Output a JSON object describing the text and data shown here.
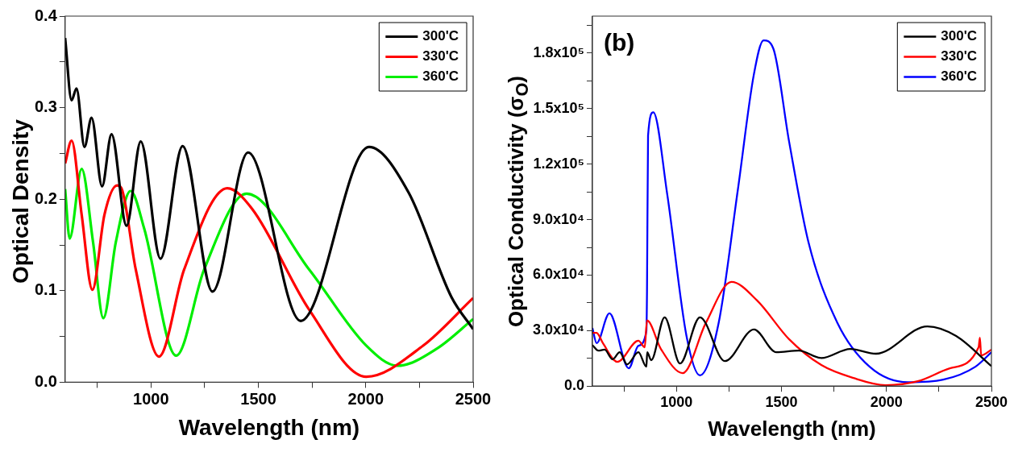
{
  "chart_data": [
    {
      "type": "line",
      "xlabel": "Wavelength (nm)",
      "ylabel": "Optical Density",
      "xlim": [
        600,
        2500
      ],
      "ylim": [
        0,
        0.4
      ],
      "xticks": [
        {
          "value": 750,
          "label": null
        },
        1000,
        {
          "value": 1250,
          "label": null
        },
        1500,
        {
          "value": 1750,
          "label": null
        },
        2000,
        {
          "value": 2250,
          "label": null
        },
        2500
      ],
      "yticks": [
        {
          "value": 0,
          "label": "0.0"
        },
        {
          "value": 0.05,
          "label": null
        },
        0.1,
        {
          "value": 0.15,
          "label": null
        },
        0.2,
        {
          "value": 0.25,
          "label": null
        },
        0.3,
        {
          "value": 0.35,
          "label": null
        },
        0.4
      ],
      "legend": "top right",
      "grid": false,
      "marker": "none",
      "line_style": "solid",
      "series": [
        {
          "name": "300'C",
          "color": "#000000",
          "x": [
            600,
            630,
            653,
            690,
            723,
            772,
            816,
            886,
            952,
            1044,
            1147,
            1286,
            1452,
            1697,
            2015,
            2200,
            2399,
            2500
          ],
          "values": [
            0.376,
            0.308,
            0.321,
            0.257,
            0.289,
            0.214,
            0.271,
            0.171,
            0.263,
            0.135,
            0.258,
            0.099,
            0.251,
            0.067,
            0.257,
            0.207,
            0.093,
            0.058
          ]
        },
        {
          "name": "330'C",
          "color": "#ff0000",
          "x": [
            600,
            630,
            677,
            727,
            783,
            842,
            862,
            929,
            1037,
            1154,
            1355,
            1472,
            1737,
            2002,
            2267,
            2500
          ],
          "values": [
            0.239,
            0.264,
            0.183,
            0.101,
            0.183,
            0.215,
            0.212,
            0.123,
            0.028,
            0.123,
            0.212,
            0.189,
            0.079,
            0.006,
            0.04,
            0.092
          ]
        },
        {
          "name": "360'C",
          "color": "#00ee00",
          "x": [
            600,
            621,
            677,
            730,
            778,
            836,
            905,
            968,
            1117,
            1247,
            1445,
            1737,
            2002,
            2148,
            2333,
            2500
          ],
          "values": [
            0.211,
            0.157,
            0.233,
            0.153,
            0.07,
            0.153,
            0.209,
            0.168,
            0.029,
            0.123,
            0.206,
            0.123,
            0.04,
            0.018,
            0.037,
            0.069
          ]
        }
      ]
    },
    {
      "type": "line",
      "xlabel": "Wavelength (nm)",
      "ylabel": "Optical Conductivity (σ$_{O}$)",
      "xlim": [
        600,
        2500
      ],
      "ylim": [
        0,
        200000
      ],
      "xticks": [
        {
          "value": 750,
          "label": null
        },
        1000,
        {
          "value": 1250,
          "label": null
        },
        1500,
        {
          "value": 1750,
          "label": null
        },
        2000,
        {
          "value": 2250,
          "label": null
        },
        2500
      ],
      "yticks": [
        {
          "value": 0,
          "label": "0.0"
        },
        {
          "value": 15000,
          "label": null
        },
        {
          "value": 30000,
          "label": "3.0x10⁴"
        },
        {
          "value": 45000,
          "label": null
        },
        {
          "value": 60000,
          "label": "6.0x10⁴"
        },
        {
          "value": 75000,
          "label": null
        },
        {
          "value": 90000,
          "label": "9.0x10⁴"
        },
        {
          "value": 105000,
          "label": null
        },
        {
          "value": 120000,
          "label": "1.2x10⁵"
        },
        {
          "value": 135000,
          "label": null
        },
        {
          "value": 150000,
          "label": "1.5x10⁵"
        },
        {
          "value": 165000,
          "label": null
        },
        {
          "value": 180000,
          "label": "1.8x10⁵"
        },
        {
          "value": 195000,
          "label": null
        }
      ],
      "annotations": [
        "(b)"
      ],
      "legend": "top right",
      "grid": false,
      "marker": "none",
      "line_style": "solid",
      "series": [
        {
          "name": "300'C",
          "color": "#000000",
          "x": [
            600,
            628,
            658,
            696,
            730,
            765,
            819,
            857,
            861,
            880,
            944,
            1017,
            1112,
            1231,
            1369,
            1476,
            1583,
            1690,
            1828,
            1950,
            2195,
            2332,
            2500
          ],
          "values": [
            22200,
            19200,
            19700,
            14500,
            18300,
            11700,
            18300,
            10500,
            18300,
            14000,
            37200,
            12200,
            37200,
            13500,
            30600,
            18300,
            19200,
            15200,
            20100,
            17500,
            32300,
            27100,
            10800
          ]
        },
        {
          "name": "330'C",
          "color": "#ff0000",
          "x": [
            600,
            620,
            650,
            719,
            819,
            849,
            860,
            926,
            1030,
            1140,
            1262,
            1384,
            1537,
            1690,
            1843,
            1996,
            2149,
            2302,
            2439,
            2445,
            2451,
            2500
          ],
          "values": [
            28800,
            28800,
            23200,
            13100,
            24500,
            21000,
            35500,
            20100,
            7000,
            34100,
            56300,
            46300,
            25300,
            11400,
            4400,
            500,
            2600,
            9600,
            21000,
            26200,
            16600,
            19700
          ]
        },
        {
          "name": "360'C",
          "color": "#0000ff",
          "x": [
            600,
            620,
            681,
            773,
            819,
            857,
            860,
            865,
            890,
            956,
            1048,
            1112,
            1201,
            1292,
            1369,
            1415,
            1461,
            1537,
            1629,
            1767,
            1920,
            2103,
            2271,
            2424,
            2500
          ],
          "values": [
            31400,
            23200,
            39300,
            9600,
            21800,
            29700,
            51500,
            135400,
            148000,
            103900,
            27100,
            5800,
            34100,
            105700,
            168600,
            186900,
            182600,
            131900,
            77700,
            34100,
            10500,
            2100,
            3500,
            10500,
            18300
          ]
        }
      ]
    }
  ]
}
